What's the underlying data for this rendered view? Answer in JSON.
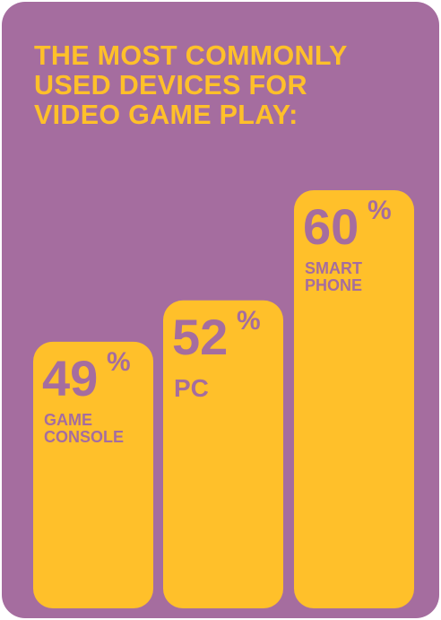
{
  "title_lines": [
    "THE MOST COMMONLY",
    "USED DEVICES FOR",
    "VIDEO GAME PLAY:"
  ],
  "colors": {
    "background": "#a56d9f",
    "bar": "#ffc02a",
    "bar_text": "#a56d9f"
  },
  "chart_data": {
    "type": "bar",
    "title": "THE MOST COMMONLY USED DEVICES FOR VIDEO GAME PLAY:",
    "categories": [
      "GAME CONSOLE",
      "PC",
      "SMART PHONE"
    ],
    "label_lines": [
      [
        "GAME",
        "CONSOLE"
      ],
      [
        "PC"
      ],
      [
        "SMART",
        "PHONE"
      ]
    ],
    "values": [
      49,
      52,
      60
    ],
    "value_labels": [
      "49",
      "52",
      "60"
    ],
    "unit": "%",
    "xlabel": "",
    "ylabel": ""
  }
}
